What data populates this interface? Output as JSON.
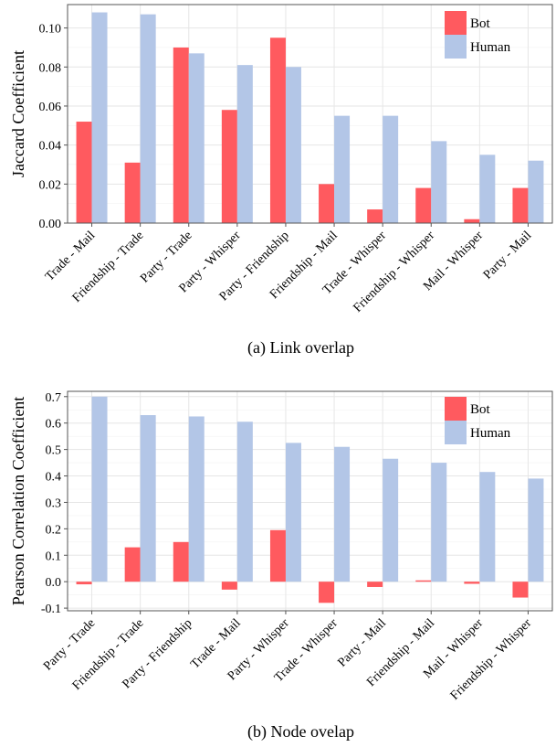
{
  "colors": {
    "bot": "#FF5A5F",
    "human": "#B3C6E7",
    "grid": "#E6E6E6",
    "axis": "#555555"
  },
  "chart_data": [
    {
      "type": "bar",
      "caption": "(a) Link overlap",
      "ylabel": "Jaccard Coefficient",
      "ylim": [
        0,
        0.112
      ],
      "yticks": [
        0.0,
        0.02,
        0.04,
        0.06,
        0.08,
        0.1
      ],
      "ytick_labels": [
        "0.00",
        "0.02",
        "0.04",
        "0.06",
        "0.08",
        "0.10"
      ],
      "grid": true,
      "legend": "top-right",
      "categories": [
        "Trade - Mail",
        "Friendship - Trade",
        "Party - Trade",
        "Party - Whisper",
        "Party - Friendship",
        "Friendship - Mail",
        "Trade - Whisper",
        "Friendship - Whisper",
        "Mail - Whisper",
        "Party - Mail"
      ],
      "series": [
        {
          "name": "Bot",
          "values": [
            0.052,
            0.031,
            0.09,
            0.058,
            0.095,
            0.02,
            0.007,
            0.018,
            0.002,
            0.018
          ]
        },
        {
          "name": "Human",
          "values": [
            0.108,
            0.107,
            0.087,
            0.081,
            0.08,
            0.055,
            0.055,
            0.042,
            0.035,
            0.032
          ]
        }
      ]
    },
    {
      "type": "bar",
      "caption": "(b) Node ovelap",
      "ylabel": "Pearson Correlation Coefficient",
      "ylim": [
        -0.11,
        0.72
      ],
      "yticks": [
        -0.1,
        0.0,
        0.1,
        0.2,
        0.3,
        0.4,
        0.5,
        0.6,
        0.7
      ],
      "ytick_labels": [
        "-0.1",
        "0.0",
        "0.1",
        "0.2",
        "0.3",
        "0.4",
        "0.5",
        "0.6",
        "0.7"
      ],
      "grid": true,
      "legend": "top-right",
      "categories": [
        "Party - Trade",
        "Friendship - Trade",
        "Party - Friendship",
        "Trade - Mail",
        "Party - Whisper",
        "Trade - Whisper",
        "Party - Mail",
        "Friendship - Mail",
        "Mail - Whisper",
        "Friendship - Whisper"
      ],
      "series": [
        {
          "name": "Bot",
          "values": [
            -0.01,
            0.13,
            0.15,
            -0.03,
            0.195,
            -0.08,
            -0.02,
            0.005,
            -0.008,
            -0.06
          ]
        },
        {
          "name": "Human",
          "values": [
            0.7,
            0.63,
            0.625,
            0.605,
            0.525,
            0.51,
            0.465,
            0.45,
            0.415,
            0.39
          ]
        }
      ]
    }
  ]
}
